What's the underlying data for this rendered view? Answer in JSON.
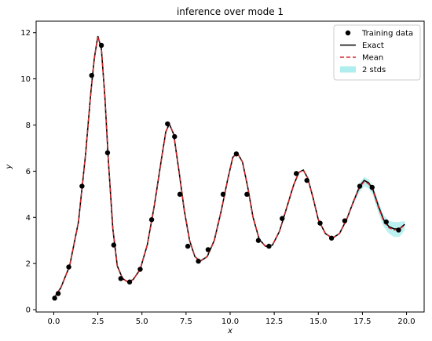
{
  "chart_data": {
    "type": "line",
    "title": "inference over mode 1",
    "xlabel": "x",
    "ylabel": "y",
    "xlim": [
      -1.0,
      21.0
    ],
    "ylim": [
      -0.1,
      12.5
    ],
    "xticks": [
      0.0,
      2.5,
      5.0,
      7.5,
      10.0,
      12.5,
      15.0,
      17.5,
      20.0
    ],
    "xtick_labels": [
      "0.0",
      "2.5",
      "5.0",
      "7.5",
      "10.0",
      "12.5",
      "15.0",
      "17.5",
      "20.0"
    ],
    "yticks": [
      0,
      2,
      4,
      6,
      8,
      10,
      12
    ],
    "ytick_labels": [
      "0",
      "2",
      "4",
      "6",
      "8",
      "10",
      "12"
    ],
    "grid": false,
    "legend_position": "top-right",
    "legend": [
      {
        "key": "training",
        "label": "Training data"
      },
      {
        "key": "exact",
        "label": "Exact"
      },
      {
        "key": "mean",
        "label": "Mean"
      },
      {
        "key": "band",
        "label": "2 stds"
      }
    ],
    "colors": {
      "training": "#000000",
      "exact": "#000000",
      "mean": "#d62728",
      "band": "#afeeee"
    },
    "training_data": {
      "x": [
        0.05,
        0.25,
        0.85,
        1.6,
        2.15,
        2.7,
        3.05,
        3.4,
        3.8,
        4.3,
        4.9,
        5.55,
        6.45,
        6.85,
        7.15,
        7.6,
        8.2,
        8.75,
        9.6,
        10.35,
        10.95,
        11.6,
        12.2,
        12.95,
        13.75,
        14.35,
        15.1,
        15.75,
        16.5,
        17.35,
        18.05,
        18.85,
        19.55
      ],
      "y": [
        0.5,
        0.7,
        1.85,
        5.35,
        10.15,
        11.45,
        6.8,
        2.8,
        1.35,
        1.2,
        1.75,
        3.9,
        8.05,
        7.5,
        5.0,
        2.75,
        2.1,
        2.6,
        5.0,
        6.75,
        5.0,
        3.0,
        2.75,
        3.95,
        5.9,
        5.6,
        3.75,
        3.1,
        3.85,
        5.35,
        5.3,
        3.8,
        3.45
      ]
    },
    "exact": {
      "x": [
        0.0,
        0.4,
        0.9,
        1.4,
        1.8,
        2.1,
        2.3,
        2.5,
        2.7,
        2.9,
        3.1,
        3.35,
        3.6,
        3.9,
        4.2,
        4.5,
        4.9,
        5.3,
        5.7,
        6.1,
        6.35,
        6.55,
        6.8,
        7.1,
        7.4,
        7.7,
        8.0,
        8.3,
        8.7,
        9.1,
        9.5,
        9.85,
        10.15,
        10.4,
        10.7,
        11.0,
        11.3,
        11.65,
        12.0,
        12.4,
        12.8,
        13.2,
        13.6,
        13.9,
        14.15,
        14.4,
        14.7,
        15.0,
        15.4,
        15.8,
        16.2,
        16.6,
        17.0,
        17.35,
        17.6,
        17.85,
        18.1,
        18.4,
        18.7,
        19.0,
        19.3,
        19.6,
        19.9
      ],
      "y": [
        0.5,
        0.95,
        1.9,
        3.8,
        6.7,
        9.4,
        10.9,
        11.85,
        11.3,
        9.2,
        6.4,
        3.5,
        1.9,
        1.35,
        1.2,
        1.3,
        1.75,
        2.8,
        4.5,
        6.5,
        7.7,
        8.05,
        7.6,
        6.0,
        4.3,
        3.0,
        2.3,
        2.1,
        2.3,
        3.0,
        4.3,
        5.6,
        6.6,
        6.8,
        6.4,
        5.3,
        4.0,
        3.05,
        2.75,
        2.8,
        3.4,
        4.4,
        5.4,
        5.95,
        6.05,
        5.7,
        4.85,
        3.9,
        3.3,
        3.1,
        3.3,
        3.9,
        4.7,
        5.35,
        5.6,
        5.5,
        5.2,
        4.5,
        3.9,
        3.6,
        3.5,
        3.5,
        3.7
      ]
    },
    "mean": {
      "x": [
        0.0,
        0.4,
        0.9,
        1.4,
        1.8,
        2.1,
        2.3,
        2.5,
        2.7,
        2.9,
        3.1,
        3.35,
        3.6,
        3.9,
        4.2,
        4.5,
        4.9,
        5.3,
        5.7,
        6.1,
        6.35,
        6.55,
        6.8,
        7.1,
        7.4,
        7.7,
        8.0,
        8.3,
        8.7,
        9.1,
        9.5,
        9.85,
        10.15,
        10.4,
        10.7,
        11.0,
        11.3,
        11.65,
        12.0,
        12.4,
        12.8,
        13.2,
        13.6,
        13.9,
        14.15,
        14.4,
        14.7,
        15.0,
        15.4,
        15.8,
        16.2,
        16.6,
        17.0,
        17.35,
        17.6,
        17.85,
        18.1,
        18.4,
        18.7,
        19.0,
        19.3,
        19.6,
        19.9
      ],
      "y": [
        0.5,
        0.95,
        1.9,
        3.8,
        6.7,
        9.4,
        10.9,
        11.85,
        11.3,
        9.2,
        6.4,
        3.5,
        1.9,
        1.35,
        1.2,
        1.3,
        1.75,
        2.8,
        4.5,
        6.5,
        7.7,
        8.05,
        7.6,
        6.0,
        4.3,
        3.0,
        2.3,
        2.1,
        2.3,
        3.0,
        4.3,
        5.6,
        6.6,
        6.8,
        6.4,
        5.3,
        4.0,
        3.05,
        2.75,
        2.8,
        3.4,
        4.4,
        5.4,
        5.95,
        6.05,
        5.7,
        4.85,
        3.9,
        3.3,
        3.1,
        3.3,
        3.9,
        4.7,
        5.3,
        5.55,
        5.45,
        5.15,
        4.45,
        3.85,
        3.55,
        3.45,
        3.5,
        3.65
      ]
    },
    "band": {
      "x": [
        16.6,
        17.0,
        17.35,
        17.6,
        17.85,
        18.1,
        18.4,
        18.7,
        19.0,
        19.3,
        19.6,
        19.9
      ],
      "upper": [
        3.95,
        4.8,
        5.5,
        5.75,
        5.65,
        5.35,
        4.7,
        4.1,
        3.85,
        3.8,
        3.8,
        3.85
      ],
      "lower": [
        3.85,
        4.6,
        5.1,
        5.35,
        5.25,
        4.95,
        4.2,
        3.6,
        3.3,
        3.15,
        3.15,
        3.45
      ]
    }
  }
}
